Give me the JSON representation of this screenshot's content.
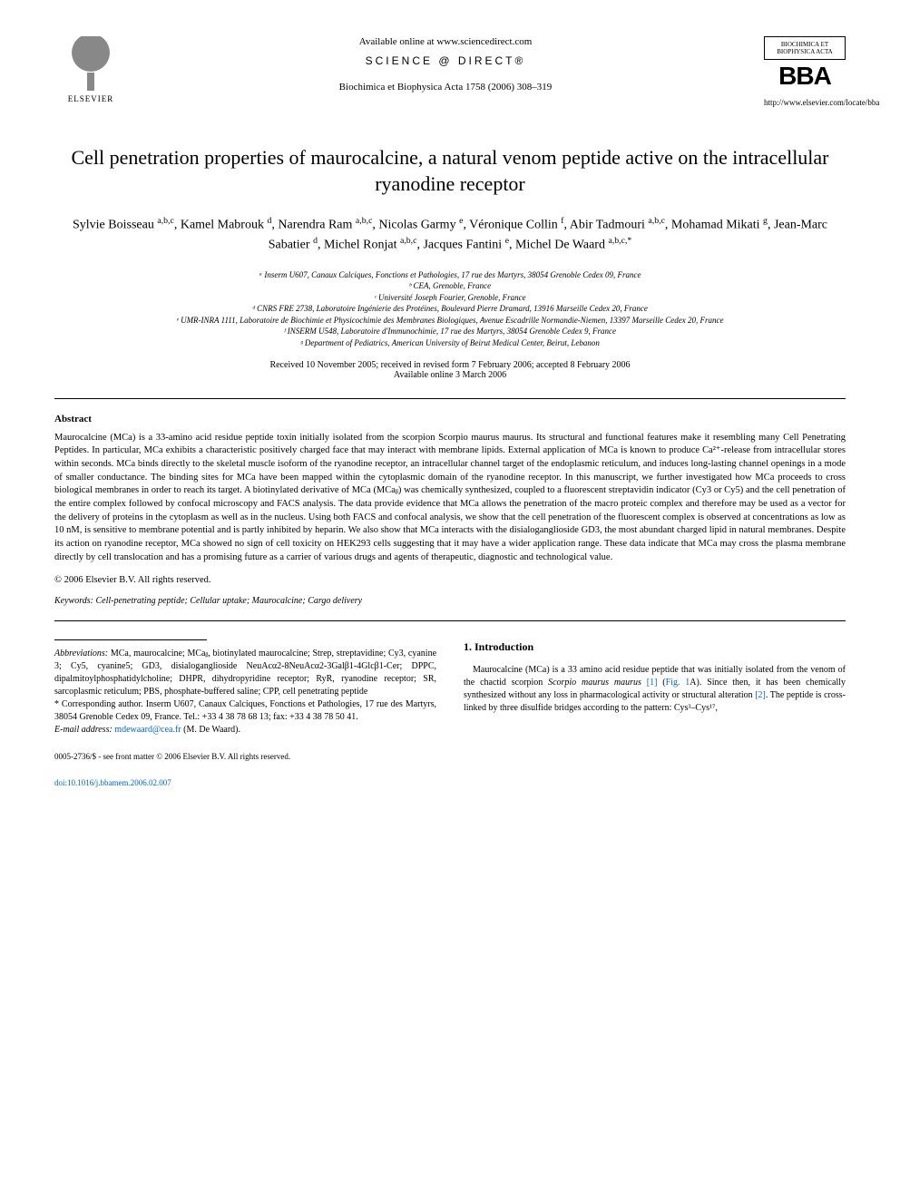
{
  "header": {
    "available_online": "Available online at www.sciencedirect.com",
    "science_direct": "SCIENCE @ DIRECT®",
    "journal_ref": "Biochimica et Biophysica Acta 1758 (2006) 308–319",
    "elsevier_label": "ELSEVIER",
    "bba_top": "BIOCHIMICA ET BIOPHYSICA ACTA",
    "bba_large": "BBA",
    "journal_url": "http://www.elsevier.com/locate/bba"
  },
  "title": "Cell penetration properties of maurocalcine, a natural venom peptide active on the intracellular ryanodine receptor",
  "authors_html": "Sylvie Boisseau <sup>a,b,c</sup>, Kamel Mabrouk <sup>d</sup>, Narendra Ram <sup>a,b,c</sup>, Nicolas Garmy <sup>e</sup>, Véronique Collin <sup>f</sup>, Abir Tadmouri <sup>a,b,c</sup>, Mohamad Mikati <sup>g</sup>, Jean-Marc Sabatier <sup>d</sup>, Michel Ronjat <sup>a,b,c</sup>, Jacques Fantini <sup>e</sup>, Michel De Waard <sup>a,b,c,*</sup>",
  "affiliations": [
    "ᵃ Inserm U607, Canaux Calciques, Fonctions et Pathologies, 17 rue des Martyrs, 38054 Grenoble Cedex 09, France",
    "ᵇ CEA, Grenoble, France",
    "ᶜ Université Joseph Fourier, Grenoble, France",
    "ᵈ CNRS FRE 2738, Laboratoire Ingénierie des Protéines, Boulevard Pierre Dramard, 13916 Marseille Cedex 20, France",
    "ᵉ UMR-INRA 1111, Laboratoire de Biochimie et Physicochimie des Membranes Biologiques, Avenue Escadrille Normandie-Niemen, 13397 Marseille Cedex 20, France",
    "ᶠ INSERM U548, Laboratoire d'Immunochimie, 17 rue des Martyrs, 38054 Grenoble Cedex 9, France",
    "ᵍ Department of Pediatrics, American University of Beirut Medical Center, Beirut, Lebanon"
  ],
  "dates": {
    "received": "Received 10 November 2005; received in revised form 7 February 2006; accepted 8 February 2006",
    "available": "Available online 3 March 2006"
  },
  "abstract": {
    "label": "Abstract",
    "text": "Maurocalcine (MCa) is a 33-amino acid residue peptide toxin initially isolated from the scorpion Scorpio maurus maurus. Its structural and functional features make it resembling many Cell Penetrating Peptides. In particular, MCa exhibits a characteristic positively charged face that may interact with membrane lipids. External application of MCa is known to produce Ca²⁺-release from intracellular stores within seconds. MCa binds directly to the skeletal muscle isoform of the ryanodine receptor, an intracellular channel target of the endoplasmic reticulum, and induces long-lasting channel openings in a mode of smaller conductance. The binding sites for MCa have been mapped within the cytoplasmic domain of the ryanodine receptor. In this manuscript, we further investigated how MCa proceeds to cross biological membranes in order to reach its target. A biotinylated derivative of MCa (MCaᵦ) was chemically synthesized, coupled to a fluorescent streptavidin indicator (Cy3 or Cy5) and the cell penetration of the entire complex followed by confocal microscopy and FACS analysis. The data provide evidence that MCa allows the penetration of the macro proteic complex and therefore may be used as a vector for the delivery of proteins in the cytoplasm as well as in the nucleus. Using both FACS and confocal analysis, we show that the cell penetration of the fluorescent complex is observed at concentrations as low as 10 nM, is sensitive to membrane potential and is partly inhibited by heparin. We also show that MCa interacts with the disialoganglioside GD3, the most abundant charged lipid in natural membranes. Despite its action on ryanodine receptor, MCa showed no sign of cell toxicity on HEK293 cells suggesting that it may have a wider application range. These data indicate that MCa may cross the plasma membrane directly by cell translocation and has a promising future as a carrier of various drugs and agents of therapeutic, diagnostic and technological value.",
    "copyright": "© 2006 Elsevier B.V. All rights reserved."
  },
  "keywords": {
    "label": "Keywords:",
    "text": "Cell-penetrating peptide; Cellular uptake; Maurocalcine; Cargo delivery"
  },
  "footnotes": {
    "abbrev_label": "Abbreviations:",
    "abbrev_text": "MCa, maurocalcine; MCaᵦ, biotinylated maurocalcine; Strep, streptavidine; Cy3, cyanine 3; Cy5, cyanine5; GD3, disialoganglioside NeuAcα2-8NeuAcα2-3Galβ1-4Glcβ1-Cer; DPPC, dipalmitoylphosphatidylcholine; DHPR, dihydropyridine receptor; RyR, ryanodine receptor; SR, sarcoplasmic reticulum; PBS, phosphate-buffered saline; CPP, cell penetrating peptide",
    "corresponding": "* Corresponding author. Inserm U607, Canaux Calciques, Fonctions et Pathologies, 17 rue des Martyrs, 38054 Grenoble Cedex 09, France. Tel.: +33 4 38 78 68 13; fax: +33 4 38 78 50 41.",
    "email_label": "E-mail address:",
    "email": "mdewaard@cea.fr",
    "email_who": "(M. De Waard)."
  },
  "intro": {
    "heading": "1. Introduction",
    "text_html": "Maurocalcine (MCa) is a 33 amino acid residue peptide that was initially isolated from the venom of the chactid scorpion <i>Scorpio maurus maurus</i> <span class='link'>[1]</span> (<span class='link'>Fig. 1</span>A). Since then, it has been chemically synthesized without any loss in pharmacological activity or structural alteration <span class='link'>[2]</span>. The peptide is cross-linked by three disulfide bridges according to the pattern: Cys³–Cys¹⁷,"
  },
  "footer": {
    "line1": "0005-2736/$ - see front matter © 2006 Elsevier B.V. All rights reserved.",
    "doi": "doi:10.1016/j.bbamem.2006.02.007"
  },
  "colors": {
    "text": "#000000",
    "link": "#0066cc",
    "background": "#ffffff"
  }
}
